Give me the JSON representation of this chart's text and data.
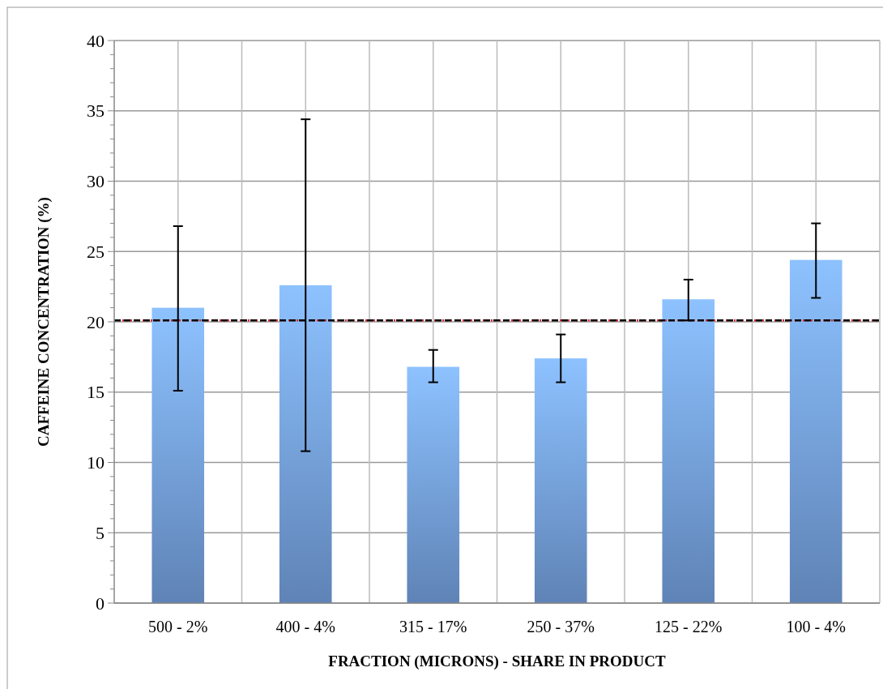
{
  "chart_data": {
    "type": "bar",
    "xlabel": "FRACTION (MICRONS) - SHARE IN PRODUCT",
    "ylabel": "CAFFEINE CONCENTRATION (%)",
    "categories": [
      "500 - 2%",
      "400 - 4%",
      "315 - 17%",
      "250 - 37%",
      "125 - 22%",
      "100 - 4%"
    ],
    "values": [
      21.0,
      22.6,
      16.8,
      17.4,
      21.6,
      24.4
    ],
    "errors": [
      [
        15.1,
        26.8
      ],
      [
        10.8,
        34.4
      ],
      [
        15.7,
        18.0
      ],
      [
        15.7,
        19.1
      ],
      [
        20.1,
        23.0
      ],
      [
        21.7,
        27.0
      ]
    ],
    "color": "#7aa8ea",
    "ylim": [
      0,
      40
    ],
    "yticks": [
      0,
      {
        "value": 1,
        "label": null
      },
      {
        "value": 2,
        "label": null
      },
      {
        "value": 3,
        "label": null
      },
      {
        "value": 4,
        "label": null
      },
      5,
      {
        "value": 6,
        "label": null
      },
      {
        "value": 7,
        "label": null
      },
      {
        "value": 8,
        "label": null
      },
      {
        "value": 9,
        "label": null
      },
      10,
      {
        "value": 11,
        "label": null
      },
      {
        "value": 12,
        "label": null
      },
      {
        "value": 13,
        "label": null
      },
      {
        "value": 14,
        "label": null
      },
      15,
      {
        "value": 16,
        "label": null
      },
      {
        "value": 17,
        "label": null
      },
      {
        "value": 18,
        "label": null
      },
      {
        "value": 19,
        "label": null
      },
      20,
      {
        "value": 21,
        "label": null
      },
      {
        "value": 22,
        "label": null
      },
      {
        "value": 23,
        "label": null
      },
      {
        "value": 24,
        "label": null
      },
      25,
      {
        "value": 26,
        "label": null
      },
      {
        "value": 27,
        "label": null
      },
      {
        "value": 28,
        "label": null
      },
      {
        "value": 29,
        "label": null
      },
      30,
      {
        "value": 31,
        "label": null
      },
      {
        "value": 32,
        "label": null
      },
      {
        "value": 33,
        "label": null
      },
      {
        "value": 34,
        "label": null
      },
      35,
      {
        "value": 36,
        "label": null
      },
      {
        "value": 37,
        "label": null
      },
      {
        "value": 38,
        "label": null
      },
      {
        "value": 39,
        "label": null
      },
      40
    ],
    "grid": true,
    "ref_lines": [
      {
        "axis": "y",
        "value": 20.1,
        "color": "#e0202a",
        "line_style": "dotted"
      },
      {
        "axis": "y",
        "value": 20.1,
        "color": "#000000",
        "line_style": "dashed"
      }
    ]
  }
}
